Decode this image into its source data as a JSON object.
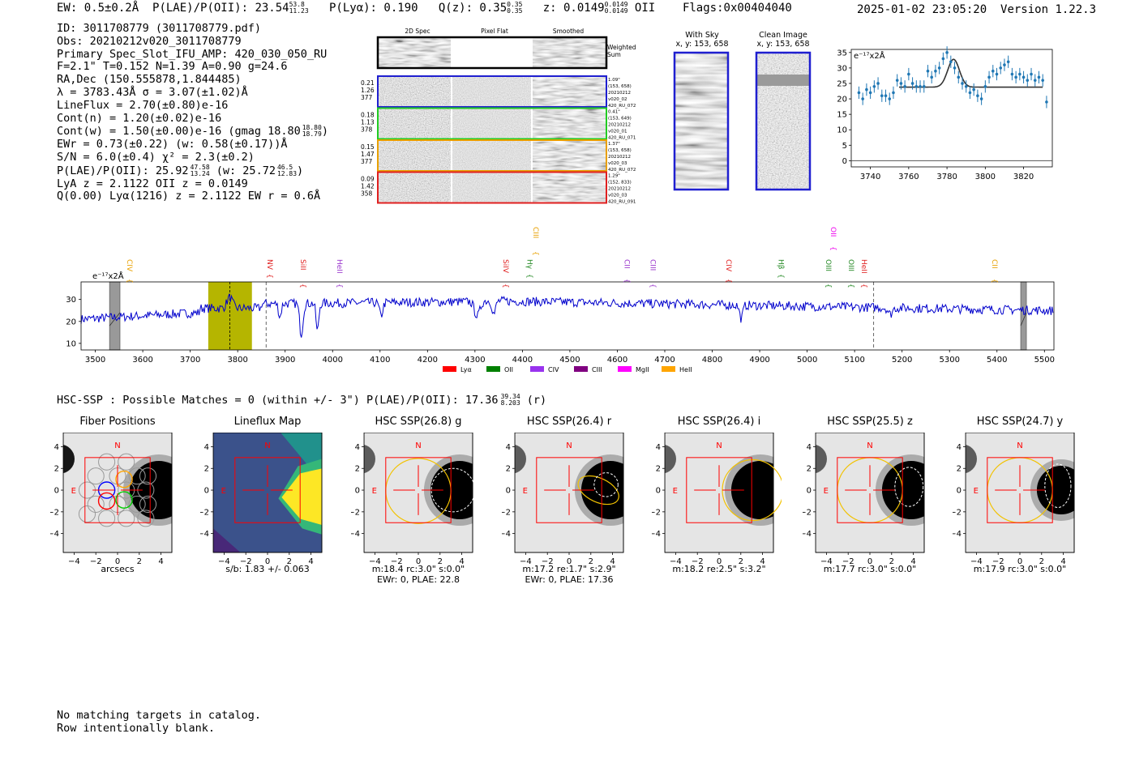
{
  "header": {
    "ew": "EW: 0.5±0.2Å",
    "plae_label": "P(LAE)/P(OII): 23.54",
    "plae_hi": "53.8",
    "plae_lo": "11.23",
    "plya": "P(Lyα): 0.190",
    "qz_label": "Q(z): 0.35",
    "qz_hi": "0.35",
    "qz_lo": "0.35",
    "z_label": "z: 0.0149",
    "z_hi": "0.0149",
    "z_lo": "0.0149",
    "z_line": "OII",
    "flags": "Flags:0x00404040",
    "timestamp": "2025-01-02 23:05:20",
    "version": "Version 1.22.3"
  },
  "info": {
    "l1": "ID: 3011708779 (3011708779.pdf)",
    "l2": "Obs: 20210212v020_3011708779",
    "l3": "Primary Spec_Slot_IFU_AMP: 420_030_050_RU",
    "l4": "F=2.1\"  T=0.152  N=1.39  A=0.90  g=24.6",
    "l5": "RA,Dec (150.555878,1.844485)",
    "l6": "λ = 3783.43Å  σ = 3.07(±1.02)Å",
    "l7": "LineFlux = 2.70(±0.80)e-16",
    "l8": "Cont(n) = 1.20(±0.02)e-16",
    "l9a": "Cont(w) = 1.50(±0.00)e-16 (gmag 18.80",
    "l9hi": "18.80",
    "l9lo": "18.79",
    "l9b": ")",
    "l10": "EWr = 0.73(±0.22) (w: 0.58(±0.17))Å",
    "l11": "S/N = 6.0(±0.4)  χ² = 2.3(±0.2)",
    "l12a": "P(LAE)/P(OII): 25.92",
    "l12hi": "47.58",
    "l12lo": "13.24",
    "l12b": "(w: 25.72",
    "l12hi2": "46.5",
    "l12lo2": "12.83",
    "l12c": ")",
    "l13": "LyA z = 2.1122  OII z = 0.0149",
    "l14": "Q(0.00) Lyα(1216) z = 2.1122  EW r = 0.6Å"
  },
  "spec2d": {
    "col1": "2D Spec",
    "col2": "Pixel Flat",
    "col3": "Smoothed",
    "weighted": "Weighted\nSum",
    "weighted1": "Weighted",
    "weighted2": "Sum",
    "rows": [
      {
        "l1": "0.21",
        "l2": "1.26",
        "l3": "377",
        "r1": "1.09\"",
        "r2": "(153, 658)",
        "r3": "20210212",
        "r4": "v020_02",
        "r5": "420_RU_072",
        "color": "#1f1fd0"
      },
      {
        "l1": "0.18",
        "l2": "1.13",
        "l3": "378",
        "r1": "0.41\"",
        "r2": "(153, 649)",
        "r3": "20210212",
        "r4": "v020_01",
        "r5": "420_RU_071",
        "color": "#22cc22"
      },
      {
        "l1": "0.15",
        "l2": "1.47",
        "l3": "377",
        "r1": "1.37\"",
        "r2": "(153, 658)",
        "r3": "20210212",
        "r4": "v020_03",
        "r5": "420_RU_072",
        "color": "#e8a000"
      },
      {
        "l1": "0.09",
        "l2": "1.42",
        "l3": "358",
        "r1": "1.29\"",
        "r2": "(152, 833)",
        "r3": "20210212",
        "r4": "v020_03",
        "r5": "420_RU_091",
        "color": "#e02020"
      }
    ]
  },
  "cutouts": {
    "sky_title": "With Sky",
    "sky_coords": "x, y: 153, 658",
    "clean_title": "Clean Image",
    "clean_coords": "x, y: 153, 658"
  },
  "colors": {
    "blue": "#0000cc",
    "fit_gray": "#333333",
    "errbar": "#1f77b4",
    "olive": "#b5b500",
    "red": "#d62728",
    "gold": "#f2c200"
  },
  "chart_data": [
    {
      "type": "scatter",
      "id": "zoom",
      "title": "",
      "ylabel_unit": "e⁻¹⁷x2Å",
      "xlim": [
        3730,
        3835
      ],
      "ylim": [
        -2,
        36
      ],
      "xticks": [
        "3740",
        "3760",
        "3780",
        "3800",
        "3820"
      ],
      "yticks": [
        "0",
        "5",
        "10",
        "15",
        "20",
        "25",
        "30",
        "35"
      ],
      "x": [
        3734,
        3736,
        3738,
        3740,
        3742,
        3744,
        3746,
        3748,
        3750,
        3752,
        3754,
        3756,
        3758,
        3760,
        3762,
        3764,
        3766,
        3768,
        3770,
        3772,
        3774,
        3776,
        3778,
        3780,
        3782,
        3784,
        3786,
        3788,
        3790,
        3792,
        3794,
        3796,
        3798,
        3800,
        3802,
        3804,
        3806,
        3808,
        3810,
        3812,
        3814,
        3816,
        3818,
        3820,
        3822,
        3824,
        3826,
        3828,
        3830,
        3832
      ],
      "y": [
        22,
        20,
        23,
        22,
        24,
        25,
        21,
        21,
        20,
        22,
        26,
        25,
        24,
        28,
        25,
        24,
        24,
        24,
        29,
        27,
        29,
        30,
        33,
        35,
        32,
        30,
        27,
        25,
        24,
        22,
        23,
        21,
        20,
        24,
        27,
        29,
        28,
        30,
        31,
        32,
        28,
        27,
        28,
        27,
        26,
        28,
        26,
        27,
        26,
        19
      ],
      "err": [
        2,
        2,
        2,
        2,
        2,
        2,
        2,
        2,
        2,
        2,
        2,
        2,
        2,
        2,
        2,
        2,
        2,
        2,
        2,
        2,
        2,
        2,
        2,
        2,
        2,
        2,
        2,
        2,
        2,
        2,
        2,
        2,
        2,
        2,
        2,
        2,
        2,
        2,
        2,
        2,
        2,
        2,
        2,
        2,
        2,
        2,
        2,
        2,
        2,
        2
      ],
      "fit": {
        "continuum": 23.8,
        "amplitude": 9.0,
        "center": 3783.43,
        "sigma": 3.07
      }
    },
    {
      "type": "line",
      "id": "full",
      "ylabel_unit": "e⁻¹⁷x2Å",
      "xlim": [
        3470,
        5520
      ],
      "ylim": [
        7,
        38
      ],
      "xticks": [
        "3500",
        "3600",
        "3700",
        "3800",
        "3900",
        "4000",
        "4100",
        "4200",
        "4300",
        "4400",
        "4500",
        "4600",
        "4700",
        "4800",
        "4900",
        "5000",
        "5100",
        "5200",
        "5300",
        "5400",
        "5500"
      ],
      "yticks": [
        "10",
        "20",
        "30"
      ],
      "highlight": [
        3738,
        3830
      ],
      "line_center": 3783.43,
      "dashed": [
        3860,
        5140
      ],
      "bad_regions": [
        [
          3530,
          3552
        ],
        [
          5450,
          5462
        ]
      ],
      "line_labels": [
        {
          "label": "CIV",
          "x": 3562,
          "color": "#e8a000",
          "row": "low"
        },
        {
          "label": "NV",
          "x": 3858,
          "color": "#e02020",
          "row": "low"
        },
        {
          "label": "SiII",
          "x": 3928,
          "color": "#e02020",
          "row": "low"
        },
        {
          "label": "HeII",
          "x": 4005,
          "color": "#9933cc",
          "row": "low"
        },
        {
          "label": "CIII",
          "x": 4418,
          "color": "#e8a000",
          "row": "high"
        },
        {
          "label": "SiIV",
          "x": 4355,
          "color": "#e02020",
          "row": "low"
        },
        {
          "label": "Hγ",
          "x": 4405,
          "color": "#228822",
          "row": "low"
        },
        {
          "label": "CII",
          "x": 4610,
          "color": "#9933cc",
          "row": "low"
        },
        {
          "label": "CIII",
          "x": 4665,
          "color": "#9933cc",
          "row": "low"
        },
        {
          "label": "CIV",
          "x": 4825,
          "color": "#e02020",
          "row": "low"
        },
        {
          "label": "Hβ",
          "x": 4935,
          "color": "#228822",
          "row": "low"
        },
        {
          "label": "OII",
          "x": 5045,
          "color": "#ee00ee",
          "row": "high"
        },
        {
          "label": "OIII",
          "x": 5035,
          "color": "#228822",
          "row": "low"
        },
        {
          "label": "OIII",
          "x": 5083,
          "color": "#228822",
          "row": "low"
        },
        {
          "label": "HeII",
          "x": 5110,
          "color": "#e02020",
          "row": "low"
        },
        {
          "label": "CII",
          "x": 5385,
          "color": "#e8a000",
          "row": "low"
        }
      ],
      "legend": [
        {
          "label": "Lyα",
          "color": "#ff0000"
        },
        {
          "label": "OII",
          "color": "#008000"
        },
        {
          "label": "CIV",
          "color": "#9933ee"
        },
        {
          "label": "CIII",
          "color": "#800080"
        },
        {
          "label": "MgII",
          "color": "#ff00ff"
        },
        {
          "label": "HeII",
          "color": "#ffa500"
        }
      ]
    }
  ],
  "hsc": {
    "title_a": "HSC-SSP : Possible Matches = 0 (within +/- 3\")  P(LAE)/P(OII): 17.36",
    "title_hi": "39.34",
    "title_lo": "8.203",
    "title_b": "(r)",
    "axis_ticks": [
      "−4",
      "−2",
      "0",
      "2",
      "4"
    ],
    "yticks": [
      "4",
      "2",
      "0",
      "−2",
      "−4"
    ],
    "north": "N",
    "east": "E",
    "panels": [
      {
        "title": "Fiber Positions",
        "cap1": "arcsecs",
        "cap2": ""
      },
      {
        "title": "Lineflux Map",
        "cap1": "s/b: 1.83 +/- 0.063",
        "cap2": ""
      },
      {
        "title": "HSC SSP(26.8) g",
        "cap1": "m:18.4 rc:3.0\"  s:0.0\"",
        "cap2": "EWr: 0, PLAE: 22.8"
      },
      {
        "title": "HSC SSP(26.4) r",
        "cap1": "m:17.2  re:1.7\"  s:2.9\"",
        "cap2": "EWr: 0, PLAE: 17.36"
      },
      {
        "title": "HSC SSP(26.4) i",
        "cap1": "m:18.2  re:2.5\"  s:3.2\"",
        "cap2": ""
      },
      {
        "title": "HSC SSP(25.5) z",
        "cap1": "m:17.7 rc:3.0\"  s:0.0\"",
        "cap2": ""
      },
      {
        "title": "HSC SSP(24.7) y",
        "cap1": "m:17.9 rc:3.0\"  s:0.0\"",
        "cap2": ""
      }
    ]
  },
  "footer": {
    "l1": "No matching targets in catalog.",
    "l2": "Row intentionally blank."
  }
}
